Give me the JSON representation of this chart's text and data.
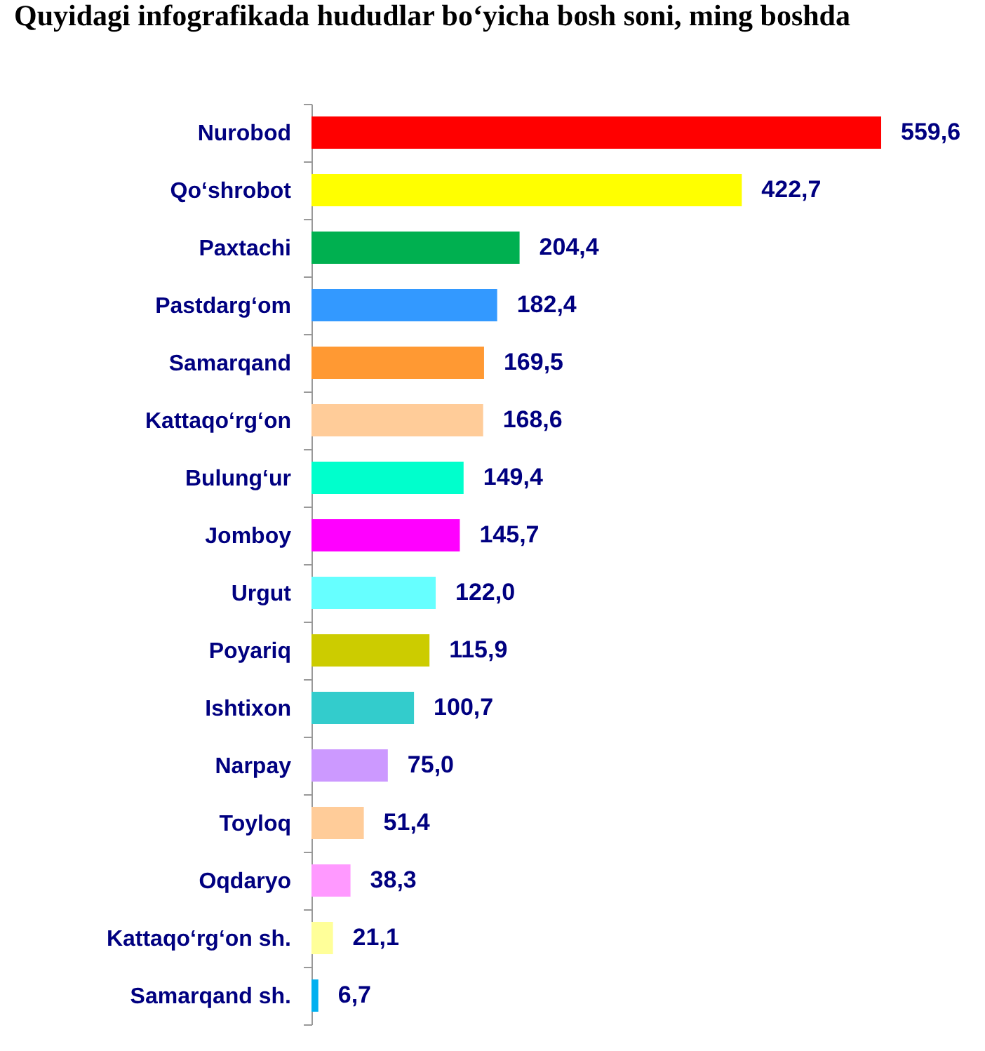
{
  "chart_data": {
    "type": "bar",
    "orientation": "horizontal",
    "title": "Quyidagi infografikada hududlar bo‘yicha bosh soni, ming boshda",
    "categories": [
      "Nurobod",
      "Qo‘shrobot",
      "Paxtachi",
      "Pastdarg‘om",
      "Samarqand",
      "Kattaqo‘rg‘on",
      "Bulung‘ur",
      "Jomboy",
      "Urgut",
      "Poyariq",
      "Ishtixon",
      "Narpay",
      "Toyloq",
      "Oqdaryo",
      "Kattaqo‘rg‘on sh.",
      "Samarqand sh."
    ],
    "values": [
      559.6,
      422.7,
      204.4,
      182.4,
      169.5,
      168.6,
      149.4,
      145.7,
      122.0,
      115.9,
      100.7,
      75.0,
      51.4,
      38.3,
      21.1,
      6.7
    ],
    "colors": [
      "#ff0000",
      "#ffff00",
      "#00b050",
      "#3399ff",
      "#ff9933",
      "#ffcc99",
      "#00ffcc",
      "#ff00ff",
      "#66ffff",
      "#cccc00",
      "#33cccc",
      "#cc99ff",
      "#ffcc99",
      "#ff99ff",
      "#ffff99",
      "#00b0f0"
    ],
    "value_labels": [
      "559,6",
      "422,7",
      "204,4",
      "182,4",
      "169,5",
      "168,6",
      "149,4",
      "145,7",
      "122,0",
      "115,9",
      "100,7",
      "75,0",
      "51,4",
      "38,3",
      "21,1",
      "6,7"
    ],
    "tick_labels": "y"
  }
}
